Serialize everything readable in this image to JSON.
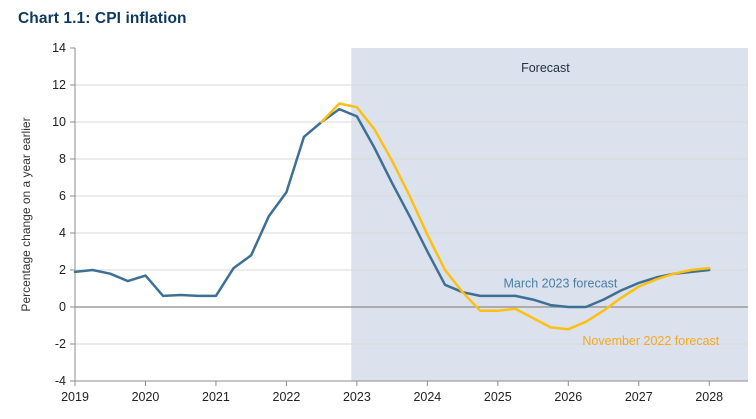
{
  "page": {
    "title": "Chart 1.1: CPI inflation"
  },
  "chart_data": {
    "type": "line",
    "title": "Chart 1.1: CPI inflation",
    "xlabel": "",
    "ylabel": "Percentage change on a year earlier",
    "xlim": [
      2019,
      2028.55
    ],
    "ylim": [
      -4,
      14
    ],
    "x_ticks": [
      2019,
      2020,
      2021,
      2022,
      2023,
      2024,
      2025,
      2026,
      2027,
      2028
    ],
    "y_ticks": [
      -4,
      -2,
      0,
      2,
      4,
      6,
      8,
      10,
      12,
      14
    ],
    "grid": true,
    "forecast_shade_start": 2022.92,
    "shade_color": "#dbe2ed",
    "zero_line_color": "#8c8c8c",
    "grid_color": "#d9d9d9",
    "axis_color": "#8c8c8c",
    "tick_label_color": "#222222",
    "series": [
      {
        "name": "March 2023 forecast",
        "color": "#3d7094",
        "points": [
          [
            2019.0,
            1.9
          ],
          [
            2019.25,
            2.0
          ],
          [
            2019.5,
            1.8
          ],
          [
            2019.75,
            1.4
          ],
          [
            2020.0,
            1.7
          ],
          [
            2020.25,
            0.6
          ],
          [
            2020.5,
            0.65
          ],
          [
            2020.75,
            0.6
          ],
          [
            2021.0,
            0.6
          ],
          [
            2021.25,
            2.1
          ],
          [
            2021.5,
            2.8
          ],
          [
            2021.75,
            4.9
          ],
          [
            2022.0,
            6.2
          ],
          [
            2022.25,
            9.2
          ],
          [
            2022.5,
            10.0
          ],
          [
            2022.75,
            10.7
          ],
          [
            2023.0,
            10.3
          ],
          [
            2023.25,
            8.6
          ],
          [
            2023.5,
            6.7
          ],
          [
            2023.75,
            4.9
          ],
          [
            2024.0,
            3.0
          ],
          [
            2024.25,
            1.2
          ],
          [
            2024.5,
            0.8
          ],
          [
            2024.75,
            0.6
          ],
          [
            2025.0,
            0.6
          ],
          [
            2025.25,
            0.6
          ],
          [
            2025.5,
            0.4
          ],
          [
            2025.75,
            0.1
          ],
          [
            2026.0,
            0.0
          ],
          [
            2026.25,
            0.0
          ],
          [
            2026.5,
            0.4
          ],
          [
            2026.75,
            0.9
          ],
          [
            2027.0,
            1.3
          ],
          [
            2027.25,
            1.6
          ],
          [
            2027.5,
            1.8
          ],
          [
            2027.75,
            1.9
          ],
          [
            2028.0,
            2.0
          ]
        ]
      },
      {
        "name": "November 2022 forecast",
        "color": "#fdc010",
        "points": [
          [
            2022.5,
            10.0
          ],
          [
            2022.75,
            11.0
          ],
          [
            2023.0,
            10.8
          ],
          [
            2023.25,
            9.6
          ],
          [
            2023.5,
            7.9
          ],
          [
            2023.75,
            6.0
          ],
          [
            2024.0,
            3.9
          ],
          [
            2024.25,
            2.0
          ],
          [
            2024.5,
            0.8
          ],
          [
            2024.75,
            -0.2
          ],
          [
            2025.0,
            -0.2
          ],
          [
            2025.25,
            -0.1
          ],
          [
            2025.5,
            -0.6
          ],
          [
            2025.75,
            -1.1
          ],
          [
            2026.0,
            -1.2
          ],
          [
            2026.25,
            -0.8
          ],
          [
            2026.5,
            -0.2
          ],
          [
            2026.75,
            0.5
          ],
          [
            2027.0,
            1.1
          ],
          [
            2027.25,
            1.5
          ],
          [
            2027.5,
            1.8
          ],
          [
            2027.75,
            2.0
          ],
          [
            2028.0,
            2.1
          ]
        ]
      }
    ],
    "annotations": [
      {
        "text": "Forecast",
        "x": 2025.33,
        "y": 12.7,
        "color": "#22303f"
      },
      {
        "text": "March 2023 forecast",
        "x": 2025.08,
        "y": 1.05,
        "color": "#4a7da5"
      },
      {
        "text": "November 2022 forecast",
        "x": 2026.2,
        "y": -2.05,
        "color": "#f6a81f"
      }
    ],
    "legend_position": "inline-annotations"
  }
}
